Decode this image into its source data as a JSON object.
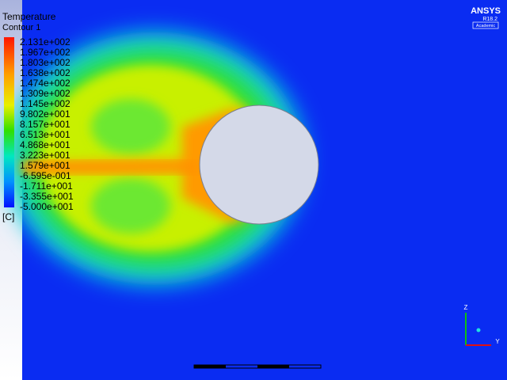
{
  "legend": {
    "title": "Temperature",
    "subtitle": "Contour 1",
    "labels": [
      "2.131e+002",
      "1.967e+002",
      "1.803e+002",
      "1.638e+002",
      "1.474e+002",
      "1.309e+002",
      "1.145e+002",
      "9.802e+001",
      "8.157e+001",
      "6.513e+001",
      "4.868e+001",
      "3.223e+001",
      "1.579e+001",
      "-6.595e-001",
      "-1.711e+001",
      "-3.355e+001",
      "-5.000e+001"
    ],
    "unit": "[C]"
  },
  "logo": {
    "brand": "ANSYS",
    "version": "R18.2",
    "edition": "Academic"
  },
  "triad": {
    "up": "Z",
    "right": "Y"
  }
}
